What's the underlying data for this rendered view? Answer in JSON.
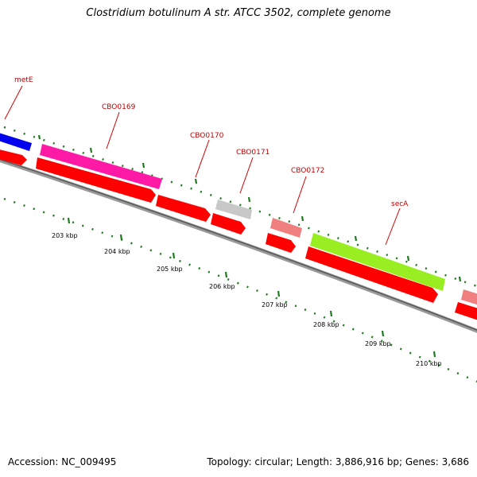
{
  "title": "Clostridium botulinum A str. ATCC 3502, complete genome",
  "footer": {
    "accession": "Accession: NC_009495",
    "summary": "Topology: circular; Length: 3,886,916 bp; Genes: 3,686"
  },
  "colors": {
    "backbone": "#777777",
    "tick": "#1f7a1f",
    "label_line": "#d00000",
    "label_text": "#c00000",
    "cds": "#ff0000"
  },
  "gene_labels": [
    {
      "name": "metE"
    },
    {
      "name": "CBO0169"
    },
    {
      "name": "CBO0170"
    },
    {
      "name": "CBO0171"
    },
    {
      "name": "CBO0172"
    },
    {
      "name": "secA"
    }
  ],
  "scale_labels": [
    "203 kbp",
    "204 kbp",
    "205 kbp",
    "206 kbp",
    "207 kbp",
    "208 kbp",
    "209 kbp",
    "210 kbp"
  ]
}
